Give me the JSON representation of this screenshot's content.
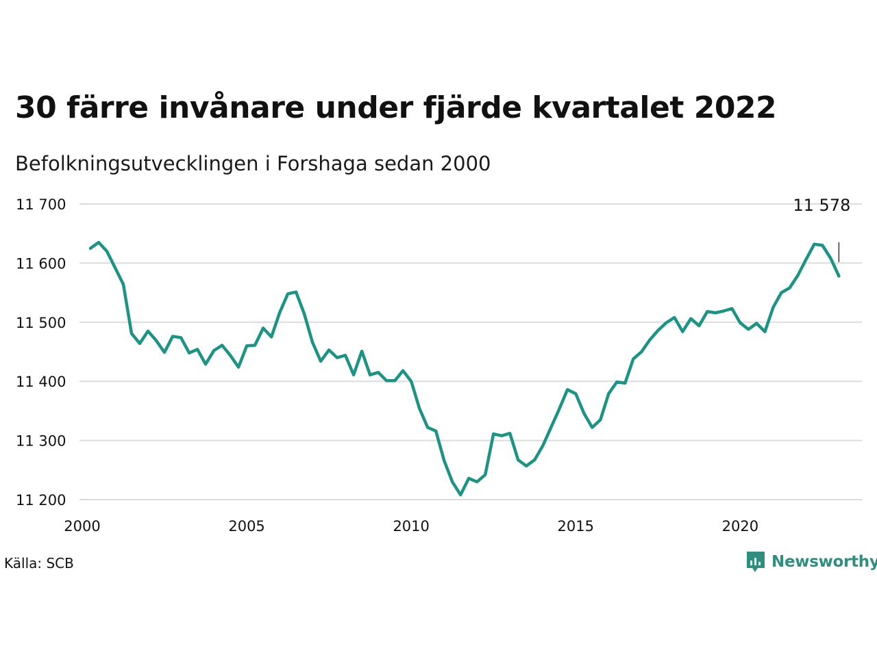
{
  "chart_data": {
    "type": "line",
    "title": "30 färre invånare under fjärde kvartalet 2022",
    "subtitle": "Befolkningsutvecklingen i Forshaga sedan 2000",
    "source": "Källa: SCB",
    "brand": "Newsworthy",
    "x_ticks": [
      "2000",
      "2005",
      "2010",
      "2015",
      "2020"
    ],
    "y_ticks": [
      "11 200",
      "11 300",
      "11 400",
      "11 500",
      "11 600",
      "11 700"
    ],
    "xlim": [
      2000,
      2023.7
    ],
    "ylim": [
      11200,
      11700
    ],
    "last_value_label": "11 578",
    "line_color": "#1b9484",
    "grid": true,
    "series": [
      {
        "x": [
          2000.25,
          2000.5,
          2000.75,
          2001.0,
          2001.25,
          2001.5,
          2001.75,
          2002.0,
          2002.25,
          2002.5,
          2002.75,
          2003.0,
          2003.25,
          2003.5,
          2003.75,
          2004.0,
          2004.25,
          2004.5,
          2004.75,
          2005.0,
          2005.25,
          2005.5,
          2005.75,
          2006.0,
          2006.25,
          2006.5,
          2006.75,
          2007.0,
          2007.25,
          2007.5,
          2007.75,
          2008.0,
          2008.25,
          2008.5,
          2008.75,
          2009.0,
          2009.25,
          2009.5,
          2009.75,
          2010.0,
          2010.25,
          2010.5,
          2010.75,
          2011.0,
          2011.25,
          2011.5,
          2011.75,
          2012.0,
          2012.25,
          2012.5,
          2012.75,
          2013.0,
          2013.25,
          2013.5,
          2013.75,
          2014.0,
          2014.25,
          2014.5,
          2014.75,
          2015.0,
          2015.25,
          2015.5,
          2015.75,
          2016.0,
          2016.25,
          2016.5,
          2016.75,
          2017.0,
          2017.25,
          2017.5,
          2017.75,
          2018.0,
          2018.25,
          2018.5,
          2018.75,
          2019.0,
          2019.25,
          2019.5,
          2019.75,
          2020.0,
          2020.25,
          2020.5,
          2020.75,
          2021.0,
          2021.25,
          2021.5,
          2021.75,
          2022.0,
          2022.25,
          2022.5,
          2022.75,
          2023.0
        ],
        "y": [
          11625,
          11635,
          11620,
          11592,
          11564,
          11481,
          11464,
          11485,
          11469,
          11449,
          11476,
          11474,
          11448,
          11454,
          11429,
          11452,
          11461,
          11444,
          11424,
          11460,
          11461,
          11490,
          11475,
          11516,
          11548,
          11551,
          11514,
          11466,
          11434,
          11453,
          11440,
          11444,
          11411,
          11451,
          11411,
          11415,
          11401,
          11401,
          11418,
          11400,
          11354,
          11322,
          11316,
          11266,
          11230,
          11208,
          11236,
          11230,
          11242,
          11311,
          11308,
          11312,
          11267,
          11257,
          11267,
          11291,
          11322,
          11353,
          11386,
          11379,
          11346,
          11322,
          11335,
          11379,
          11399,
          11397,
          11438,
          11450,
          11470,
          11486,
          11499,
          11508,
          11484,
          11506,
          11494,
          11518,
          11516,
          11519,
          11523,
          11499,
          11488,
          11498,
          11484,
          11525,
          11550,
          11558,
          11579,
          11606,
          11632,
          11630,
          11608,
          11578
        ]
      }
    ]
  }
}
